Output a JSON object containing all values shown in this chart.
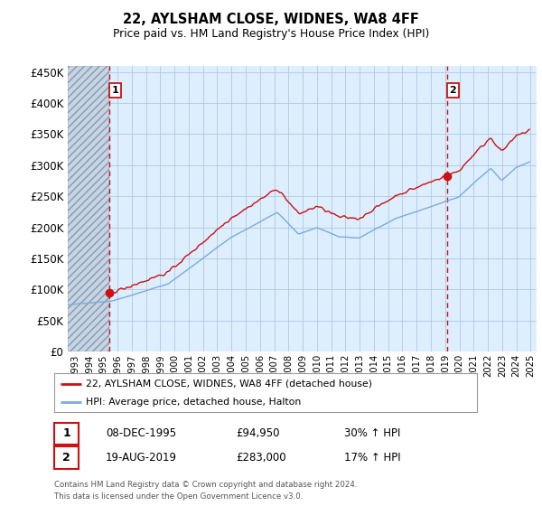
{
  "title": "22, AYLSHAM CLOSE, WIDNES, WA8 4FF",
  "subtitle": "Price paid vs. HM Land Registry's House Price Index (HPI)",
  "legend_line1": "22, AYLSHAM CLOSE, WIDNES, WA8 4FF (detached house)",
  "legend_line2": "HPI: Average price, detached house, Halton",
  "marker1_label": "1",
  "marker1_date_str": "08-DEC-1995",
  "marker1_price": 94950,
  "marker1_price_str": "£94,950",
  "marker1_pct_str": "30% ↑ HPI",
  "marker2_label": "2",
  "marker2_date_str": "19-AUG-2019",
  "marker2_price": 283000,
  "marker2_price_str": "£283,000",
  "marker2_pct_str": "17% ↑ HPI",
  "footer1": "Contains HM Land Registry data © Crown copyright and database right 2024.",
  "footer2": "This data is licensed under the Open Government Licence v3.0.",
  "hpi_color": "#7aaadd",
  "price_color": "#cc1111",
  "bg_color": "#ddeeff",
  "grid_color": "#b0c8e0",
  "dashed_color": "#cc1111",
  "box_color": "#cc1111",
  "ylim": [
    0,
    460000
  ],
  "yticks": [
    0,
    50000,
    100000,
    150000,
    200000,
    250000,
    300000,
    350000,
    400000,
    450000
  ],
  "ytick_labels": [
    "£0",
    "£50K",
    "£100K",
    "£150K",
    "£200K",
    "£250K",
    "£300K",
    "£350K",
    "£400K",
    "£450K"
  ],
  "x_start_year": 1993,
  "x_end_year": 2025
}
